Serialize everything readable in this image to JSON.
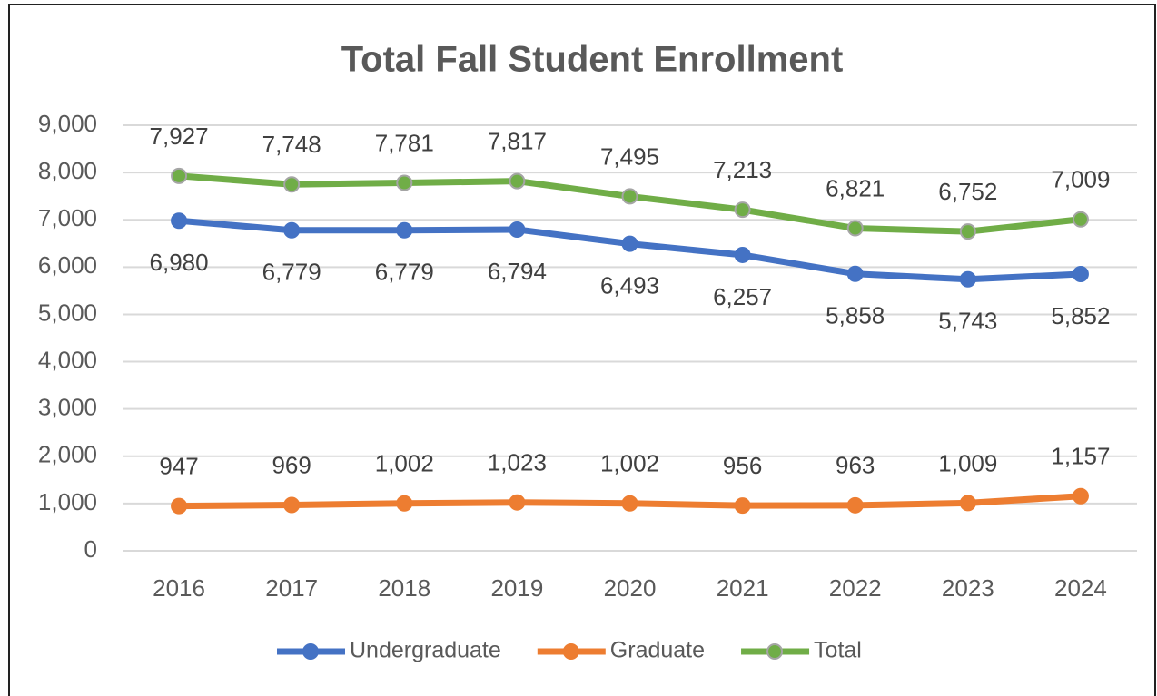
{
  "chart_data": {
    "type": "line",
    "title": "Total Fall Student Enrollment",
    "categories": [
      "2016",
      "2017",
      "2018",
      "2019",
      "2020",
      "2021",
      "2022",
      "2023",
      "2024"
    ],
    "series": [
      {
        "name": "Undergraduate",
        "color": "#4472c4",
        "values": [
          6980,
          6779,
          6779,
          6794,
          6493,
          6257,
          5858,
          5743,
          5852
        ],
        "value_labels": [
          "6,980",
          "6,779",
          "6,779",
          "6,794",
          "6,493",
          "6,257",
          "5,858",
          "5,743",
          "5,852"
        ]
      },
      {
        "name": "Graduate",
        "color": "#ed7d31",
        "values": [
          947,
          969,
          1002,
          1023,
          1002,
          956,
          963,
          1009,
          1157
        ],
        "value_labels": [
          "947",
          "969",
          "1,002",
          "1,023",
          "1,002",
          "956",
          "963",
          "1,009",
          "1,157"
        ]
      },
      {
        "name": "Total",
        "color": "#70ad47",
        "values": [
          7927,
          7748,
          7781,
          7817,
          7495,
          7213,
          6821,
          6752,
          7009
        ],
        "value_labels": [
          "7,927",
          "7,748",
          "7,781",
          "7,817",
          "7,495",
          "7,213",
          "6,821",
          "6,752",
          "7,009"
        ]
      }
    ],
    "ylim": [
      0,
      9000
    ],
    "yticks": [
      0,
      {
        "value": 1000,
        "label": "1,000"
      },
      {
        "value": 2000,
        "label": "2,000"
      },
      {
        "value": 3000,
        "label": "3,000"
      },
      {
        "value": 4000,
        "label": "4,000"
      },
      {
        "value": 5000,
        "label": "5,000"
      },
      {
        "value": 6000,
        "label": "6,000"
      },
      {
        "value": 7000,
        "label": "7,000"
      },
      {
        "value": 8000,
        "label": "8,000"
      },
      {
        "value": 9000,
        "label": "9,000"
      }
    ],
    "grid": true,
    "legend": "bottom"
  }
}
